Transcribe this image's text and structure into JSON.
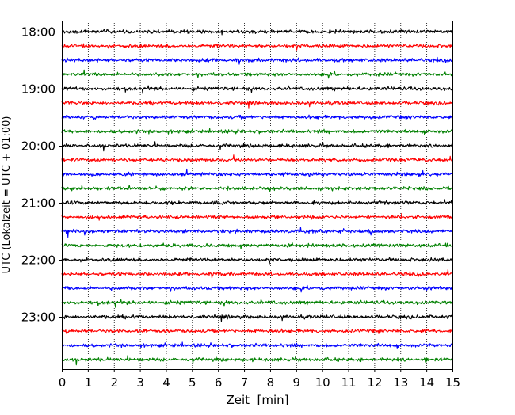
{
  "chart_data": {
    "type": "line",
    "title": "",
    "xlabel": "Zeit  [min]",
    "ylabel": "UTC (Lokalzeit = UTC + 01:00)",
    "xlim": [
      0,
      15
    ],
    "x_ticks": [
      "0",
      "1",
      "2",
      "3",
      "4",
      "5",
      "6",
      "7",
      "8",
      "9",
      "10",
      "11",
      "12",
      "13",
      "14",
      "15"
    ],
    "y_tick_labels": [
      "18:00",
      "19:00",
      "20:00",
      "21:00",
      "22:00",
      "23:00"
    ],
    "trace_start_times": [
      "18:00",
      "18:15",
      "18:30",
      "18:45",
      "19:00",
      "19:15",
      "19:30",
      "19:45",
      "20:00",
      "20:15",
      "20:30",
      "20:45",
      "21:00",
      "21:15",
      "21:30",
      "21:45",
      "22:00",
      "22:15",
      "22:30",
      "22:45",
      "23:00",
      "23:15",
      "23:30",
      "23:45"
    ],
    "trace_minutes_each": 15,
    "trace_color_cycle": [
      "#000000",
      "#ff0000",
      "#0000ff",
      "#008000"
    ],
    "grid": "vertical dotted lines at each minute",
    "legend": "none"
  }
}
